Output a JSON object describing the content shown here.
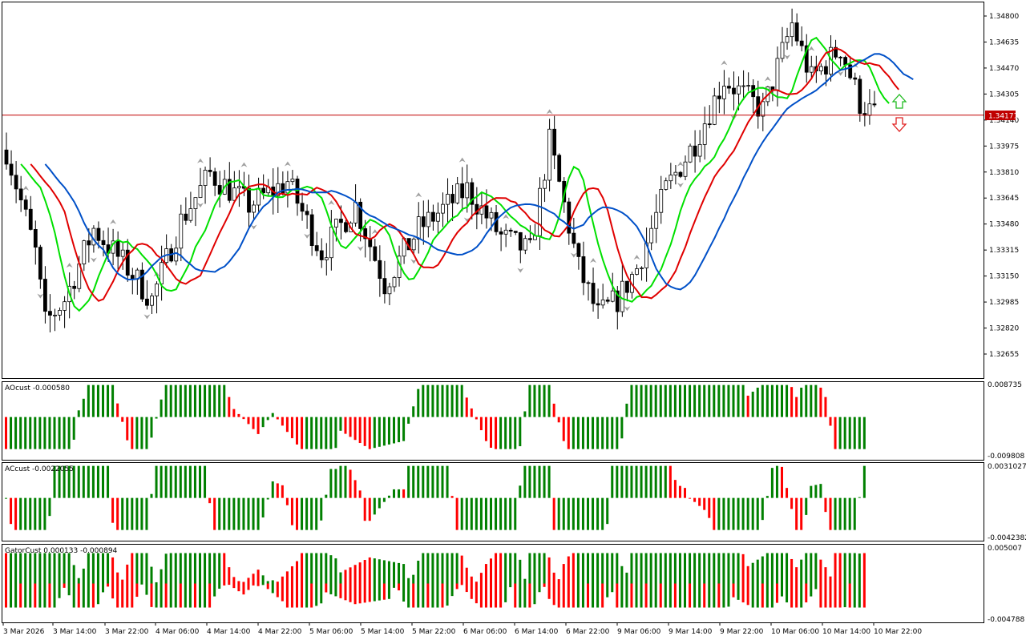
{
  "main_chart": {
    "price_labels": [
      "1.34800",
      "1.34635",
      "1.34470",
      "1.34305",
      "1.34140",
      "1.33975",
      "1.33810",
      "1.33645",
      "1.33480",
      "1.33315",
      "1.33150",
      "1.32985",
      "1.32820",
      "1.32655"
    ],
    "price_min": 1.3255,
    "price_max": 1.349,
    "current_price": "1.34171",
    "current_price_value": 1.34171,
    "colors": {
      "bull_body": "#ffffff",
      "bear_body": "#000000",
      "wick": "#000000",
      "fast_ma": "#00e000",
      "mid_ma": "#e00000",
      "slow_ma": "#0050c8",
      "price_line": "#c00000",
      "fractal": "#a0a0a0"
    },
    "signal_up_icon": "arrow-up-outline-green",
    "signal_down_icon": "arrow-down-outline-red"
  },
  "ao_panel": {
    "label": "AOcust -0.000580",
    "scale_top": "0.008735",
    "scale_bottom": "-0.009808"
  },
  "ac_panel": {
    "label": "ACcust -0.0022055",
    "scale_top": "0.0031027",
    "scale_bottom": "-0.0042382"
  },
  "gator_panel": {
    "label": "GatorCust 0.000133 -0.000894",
    "scale_top": "0.005007",
    "scale_bottom": "-0.004788"
  },
  "time_axis": [
    "3 Mar 2026",
    "3 Mar 14:00",
    "3 Mar 22:00",
    "4 Mar 06:00",
    "4 Mar 14:00",
    "4 Mar 22:00",
    "5 Mar 06:00",
    "5 Mar 14:00",
    "5 Mar 22:00",
    "6 Mar 06:00",
    "6 Mar 14:00",
    "6 Mar 22:00",
    "9 Mar 06:00",
    "9 Mar 14:00",
    "9 Mar 22:00",
    "10 Mar 06:00",
    "10 Mar 14:00",
    "10 Mar 22:00"
  ]
}
